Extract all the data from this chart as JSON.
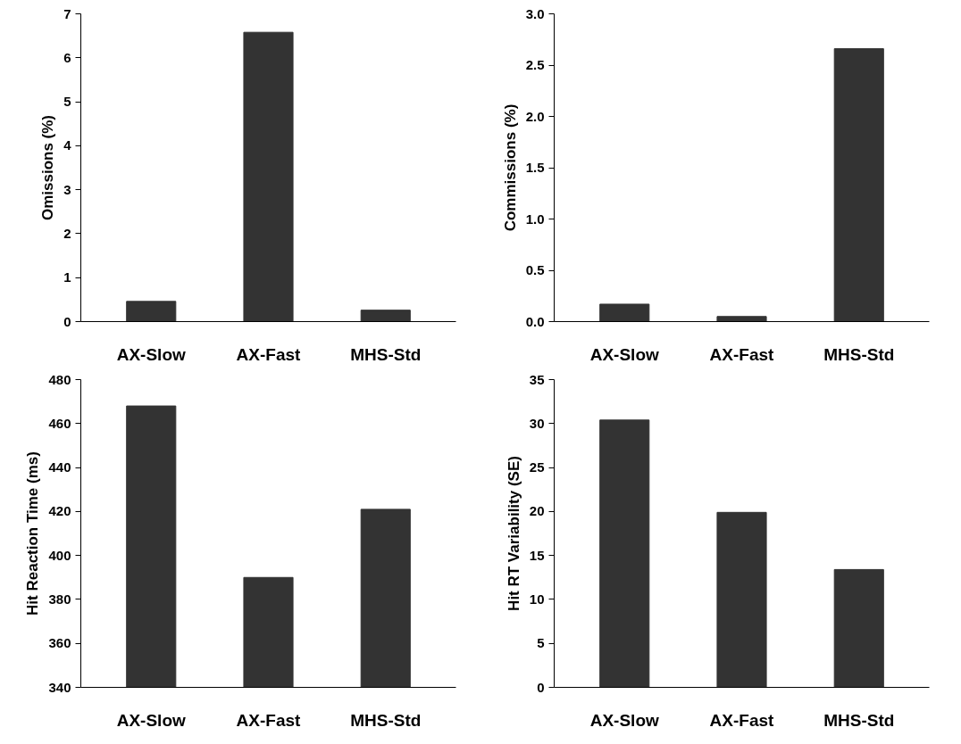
{
  "chart_data": [
    {
      "type": "bar",
      "ylabel": "Omissions (%)",
      "categories": [
        "AX-Slow",
        "AX-Fast",
        "MHS-Std"
      ],
      "values": [
        0.46,
        6.58,
        0.26
      ],
      "color": "#333333",
      "ylim": [
        0,
        7
      ],
      "yticks": [
        0,
        1,
        2,
        3,
        4,
        5,
        6,
        7
      ],
      "grid": false
    },
    {
      "type": "bar",
      "ylabel": "Commissions (%)",
      "categories": [
        "AX-Slow",
        "AX-Fast",
        "MHS-Std"
      ],
      "values": [
        0.17,
        0.05,
        2.66
      ],
      "color": "#333333",
      "ylim": [
        0,
        3
      ],
      "yticks": [
        {
          "value": 0,
          "label": "0.0"
        },
        {
          "value": 0.5,
          "label": "0.5"
        },
        {
          "value": 1,
          "label": "1.0"
        },
        {
          "value": 1.5,
          "label": "1.5"
        },
        {
          "value": 2,
          "label": "2.0"
        },
        {
          "value": 2.5,
          "label": "2.5"
        },
        {
          "value": 3,
          "label": "3.0"
        }
      ],
      "grid": false
    },
    {
      "type": "bar",
      "ylabel": "Hit Reaction Time (ms)",
      "categories": [
        "AX-Slow",
        "AX-Fast",
        "MHS-Std"
      ],
      "values": [
        468,
        390,
        421
      ],
      "color": "#333333",
      "ylim": [
        340,
        480
      ],
      "yticks": [
        340,
        360,
        380,
        400,
        420,
        440,
        460,
        480
      ],
      "grid": false
    },
    {
      "type": "bar",
      "ylabel": "Hit RT Variability (SE)",
      "categories": [
        "AX-Slow",
        "AX-Fast",
        "MHS-Std"
      ],
      "values": [
        30.4,
        19.9,
        13.4
      ],
      "color": "#333333",
      "ylim": [
        0,
        35
      ],
      "yticks": [
        0,
        5,
        10,
        15,
        20,
        25,
        30,
        35
      ],
      "grid": false
    }
  ]
}
